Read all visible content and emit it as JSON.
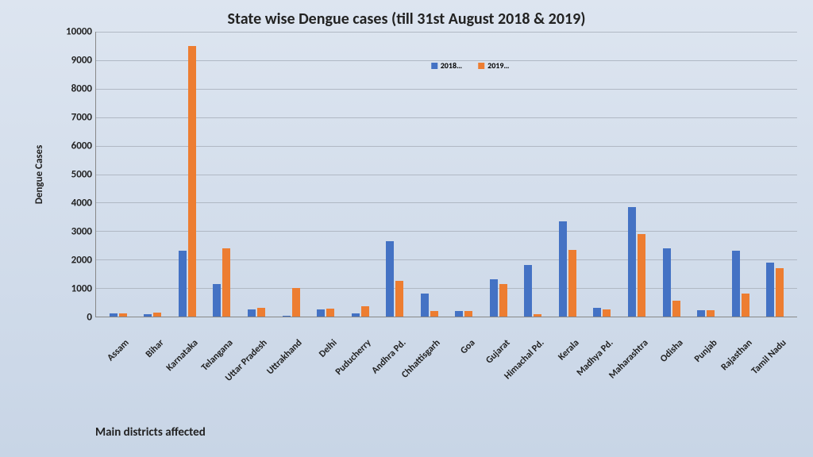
{
  "title": "State wise Dengue cases (till 31st August 2018 & 2019)",
  "ylabel": "Dengue Cases",
  "footer": "Main districts affected",
  "chart": {
    "type": "bar",
    "ymax": 10000,
    "ytick_step": 1000,
    "grid_color": "#b0b8c4",
    "series": [
      {
        "name": "2018…",
        "color": "#4472c4"
      },
      {
        "name": "2019…",
        "color": "#ed7d31"
      }
    ],
    "categories": [
      "Assam",
      "Bihar",
      "Karnataka",
      "Telangana",
      "Uttar Pradesh",
      "Uttrakhand",
      "Delhi",
      "Puducherry",
      "Andhra Pd.",
      "Chhattisgarh",
      "Goa",
      "Gujarat",
      "Himachal Pd.",
      "Kerala",
      "Madhya Pd.",
      "Maharashtra",
      "Odisha",
      "Punjab",
      "Rajasthan",
      "Tamil Nadu"
    ],
    "values_2018": [
      120,
      80,
      2300,
      1150,
      250,
      20,
      250,
      100,
      2650,
      800,
      200,
      1300,
      1800,
      3350,
      300,
      3850,
      2400,
      220,
      2320,
      1900
    ],
    "values_2019": [
      120,
      150,
      9500,
      2400,
      320,
      1000,
      280,
      350,
      1250,
      200,
      200,
      1150,
      80,
      2350,
      250,
      2900,
      550,
      220,
      800,
      1700
    ]
  }
}
